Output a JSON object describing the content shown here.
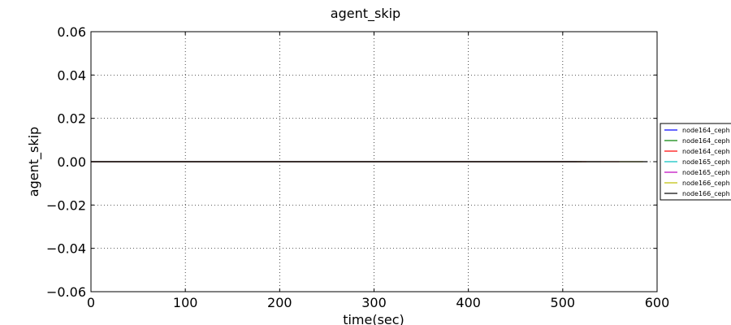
{
  "chart_data": {
    "type": "line",
    "title": "agent_skip",
    "xlabel": "time(sec)",
    "ylabel": "agent_skip",
    "xlim": [
      0,
      600
    ],
    "ylim": [
      -0.06,
      0.06
    ],
    "xticks": [
      "0",
      "100",
      "200",
      "300",
      "400",
      "500",
      "600"
    ],
    "yticks": [
      "0.06",
      "0.04",
      "0.02",
      "0.00",
      "−0.02",
      "−0.04",
      "−0.06"
    ],
    "grid": true,
    "legend_position": "right",
    "series": [
      {
        "name": "node164_ceph",
        "color": "#0000ff",
        "x": [
          0,
          515
        ],
        "y": [
          0,
          0
        ]
      },
      {
        "name": "node164_ceph",
        "color": "#008000",
        "x": [
          0,
          520
        ],
        "y": [
          0,
          0
        ]
      },
      {
        "name": "node164_ceph",
        "color": "#ff0000",
        "x": [
          0,
          525
        ],
        "y": [
          0,
          0
        ]
      },
      {
        "name": "node165_ceph",
        "color": "#00bfbf",
        "x": [
          0,
          540
        ],
        "y": [
          0,
          0
        ]
      },
      {
        "name": "node165_ceph",
        "color": "#bf00bf",
        "x": [
          0,
          560
        ],
        "y": [
          0,
          0
        ]
      },
      {
        "name": "node166_ceph",
        "color": "#bfbf00",
        "x": [
          0,
          585
        ],
        "y": [
          0,
          0
        ]
      },
      {
        "name": "node166_ceph",
        "color": "#000000",
        "x": [
          0,
          590
        ],
        "y": [
          0,
          0
        ]
      }
    ]
  }
}
